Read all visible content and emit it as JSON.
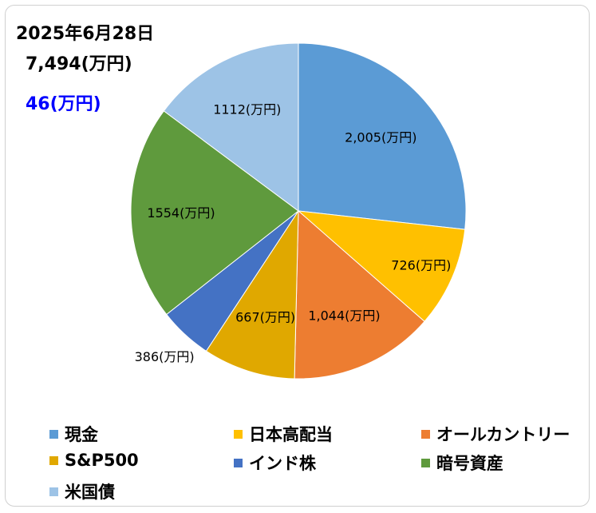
{
  "header": {
    "date": "2025年6月28日",
    "total": "7,494(万円)",
    "change": "46(万円)"
  },
  "chart_data": {
    "type": "pie",
    "title": "",
    "start_angle_deg": 0,
    "direction": "clockwise",
    "slices": [
      {
        "name": "現金",
        "value": 2005,
        "label": "2,005(万円)",
        "color": "#5b9bd5"
      },
      {
        "name": "日本高配当",
        "value": 726,
        "label": "726(万円)",
        "color": "#ffc000"
      },
      {
        "name": "オールカントリー",
        "value": 1044,
        "label": "1,044(万円)",
        "color": "#ed7d31"
      },
      {
        "name": "S&P500",
        "value": 667,
        "label": "667(万円)",
        "color": "#e0a800"
      },
      {
        "name": "インド株",
        "value": 386,
        "label": "386(万円)",
        "color": "#4472c4"
      },
      {
        "name": "暗号資産",
        "value": 1554,
        "label": "1554(万円)",
        "color": "#5f9a3d"
      },
      {
        "name": "米国債",
        "value": 1112,
        "label": "1112(万円)",
        "color": "#9dc3e6"
      }
    ],
    "legend_position": "bottom"
  }
}
